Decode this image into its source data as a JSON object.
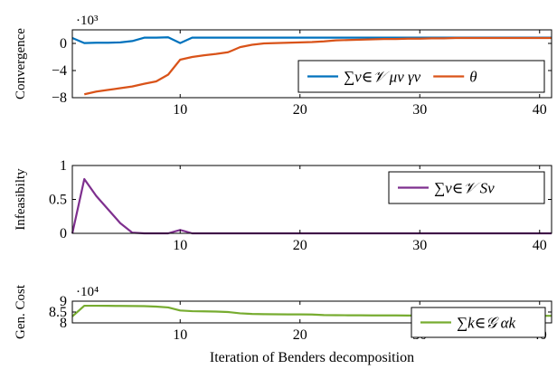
{
  "chart_data": [
    {
      "type": "line",
      "ylabel": "Convergence",
      "multiplier": "·10³",
      "xlim": [
        1,
        41
      ],
      "ylim": [
        -8,
        2
      ],
      "xticks": [
        10,
        20,
        30,
        40
      ],
      "yticks": [
        -8,
        -4,
        0
      ],
      "ytick_labels": [
        "−8",
        "−4",
        "0"
      ],
      "grid": false,
      "legend_position": "lower-right",
      "series": [
        {
          "name": "∑v∈𝒱 μv γv",
          "color": "#0072BD",
          "x": [
            1,
            2,
            3,
            4,
            5,
            6,
            7,
            8,
            9,
            10,
            11,
            12,
            13,
            14,
            15,
            16,
            17,
            18,
            19,
            20,
            21,
            22,
            23,
            24,
            25,
            26,
            27,
            28,
            29,
            30,
            31,
            32,
            33,
            34,
            35,
            36,
            37,
            38,
            39,
            40,
            41
          ],
          "y": [
            0.8,
            0.05,
            0.1,
            0.1,
            0.15,
            0.35,
            0.85,
            0.85,
            0.9,
            0.05,
            0.85,
            0.85,
            0.85,
            0.85,
            0.85,
            0.85,
            0.85,
            0.85,
            0.85,
            0.85,
            0.85,
            0.85,
            0.85,
            0.85,
            0.85,
            0.85,
            0.85,
            0.85,
            0.85,
            0.85,
            0.85,
            0.85,
            0.85,
            0.85,
            0.85,
            0.85,
            0.85,
            0.85,
            0.85,
            0.85,
            0.85
          ]
        },
        {
          "name": "θ",
          "color": "#D95319",
          "x": [
            2,
            3,
            4,
            5,
            6,
            7,
            8,
            9,
            10,
            11,
            12,
            13,
            14,
            15,
            16,
            17,
            18,
            19,
            20,
            21,
            22,
            23,
            24,
            25,
            26,
            27,
            28,
            29,
            30,
            31,
            32,
            33,
            34,
            35,
            36,
            37,
            38,
            39,
            40,
            41
          ],
          "y": [
            -7.5,
            -7.1,
            -6.85,
            -6.6,
            -6.35,
            -5.95,
            -5.6,
            -4.6,
            -2.4,
            -2.0,
            -1.75,
            -1.55,
            -1.3,
            -0.55,
            -0.2,
            0.0,
            0.05,
            0.1,
            0.15,
            0.2,
            0.3,
            0.45,
            0.5,
            0.55,
            0.6,
            0.65,
            0.65,
            0.7,
            0.7,
            0.75,
            0.75,
            0.8,
            0.8,
            0.8,
            0.8,
            0.8,
            0.8,
            0.8,
            0.8,
            0.8
          ]
        }
      ]
    },
    {
      "type": "line",
      "ylabel": "Infeasibilty",
      "xlim": [
        1,
        41
      ],
      "ylim": [
        0,
        1
      ],
      "xticks": [
        10,
        20,
        30,
        40
      ],
      "yticks": [
        0,
        0.5,
        1
      ],
      "ytick_labels": [
        "0",
        "0.5",
        "1"
      ],
      "grid": false,
      "legend_position": "upper-right",
      "series": [
        {
          "name": "∑v∈𝒱 Sv",
          "color": "#7E2F8E",
          "x": [
            1,
            2,
            3,
            4,
            5,
            6,
            7,
            8,
            9,
            10,
            11,
            12,
            13,
            14,
            15,
            16,
            17,
            18,
            19,
            20,
            21,
            22,
            23,
            24,
            25,
            26,
            27,
            28,
            29,
            30,
            31,
            32,
            33,
            34,
            35,
            36,
            37,
            38,
            39,
            40,
            41
          ],
          "y": [
            0,
            0.8,
            0.55,
            0.35,
            0.15,
            0.01,
            0,
            0,
            0,
            0.05,
            0,
            0,
            0,
            0,
            0,
            0,
            0,
            0,
            0,
            0,
            0,
            0,
            0,
            0,
            0,
            0,
            0,
            0,
            0,
            0,
            0,
            0,
            0,
            0,
            0,
            0,
            0,
            0,
            0,
            0,
            0
          ]
        }
      ]
    },
    {
      "type": "line",
      "ylabel": "Gen. Cost",
      "multiplier": "·10⁴",
      "xlabel": "Iteration of Benders decomposition",
      "xlim": [
        1,
        41
      ],
      "ylim": [
        8,
        9
      ],
      "xticks": [
        10,
        20,
        30,
        40
      ],
      "yticks": [
        8,
        8.5,
        9
      ],
      "ytick_labels": [
        "8",
        "8.5",
        "9"
      ],
      "grid": false,
      "legend_position": "upper-right",
      "series": [
        {
          "name": "∑k∈𝒢 αk",
          "color": "#77AC30",
          "x": [
            1,
            2,
            3,
            4,
            5,
            6,
            7,
            8,
            9,
            10,
            11,
            12,
            13,
            14,
            15,
            16,
            17,
            18,
            19,
            20,
            21,
            22,
            23,
            24,
            25,
            26,
            27,
            28,
            29,
            30,
            31,
            32,
            33,
            34,
            35,
            36,
            37,
            38,
            39,
            40,
            41
          ],
          "y": [
            8.3,
            8.79,
            8.79,
            8.785,
            8.78,
            8.775,
            8.77,
            8.75,
            8.71,
            8.57,
            8.54,
            8.53,
            8.52,
            8.5,
            8.44,
            8.41,
            8.4,
            8.395,
            8.39,
            8.39,
            8.385,
            8.36,
            8.355,
            8.35,
            8.35,
            8.345,
            8.345,
            8.345,
            8.34,
            8.34,
            8.335,
            8.335,
            8.335,
            8.335,
            8.33,
            8.33,
            8.33,
            8.33,
            8.325,
            8.325,
            8.325
          ]
        }
      ]
    }
  ]
}
